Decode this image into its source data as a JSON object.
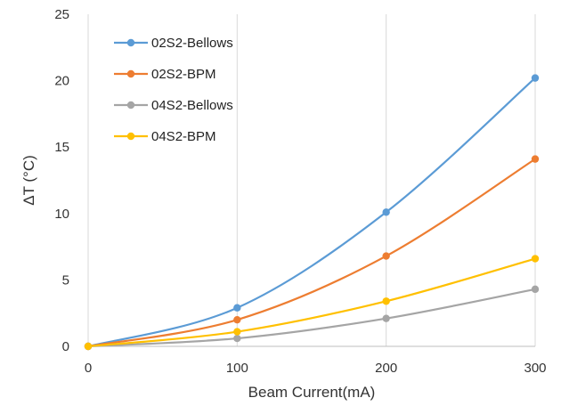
{
  "chart_data": {
    "type": "line",
    "xlabel": "Beam Current(mA)",
    "ylabel": "ΔT (°C)",
    "x": [
      0,
      100,
      200,
      300
    ],
    "xlim": [
      0,
      300
    ],
    "ylim": [
      0,
      25
    ],
    "xticks": [
      "0",
      "100",
      "200",
      "300"
    ],
    "yticks": [
      "0",
      "5",
      "10",
      "15",
      "20",
      "25"
    ],
    "grid": "vertical",
    "legend_position": "top-left",
    "series": [
      {
        "name": "02S2-Bellows",
        "color": "#5B9BD5",
        "values": [
          0,
          2.9,
          10.1,
          20.2
        ]
      },
      {
        "name": "02S2-BPM",
        "color": "#ED7D31",
        "values": [
          0,
          2.0,
          6.8,
          14.1
        ]
      },
      {
        "name": "04S2-Bellows",
        "color": "#A5A5A5",
        "values": [
          0,
          0.6,
          2.1,
          4.3
        ]
      },
      {
        "name": "04S2-BPM",
        "color": "#FFC000",
        "values": [
          0,
          1.1,
          3.4,
          6.6
        ]
      }
    ]
  }
}
